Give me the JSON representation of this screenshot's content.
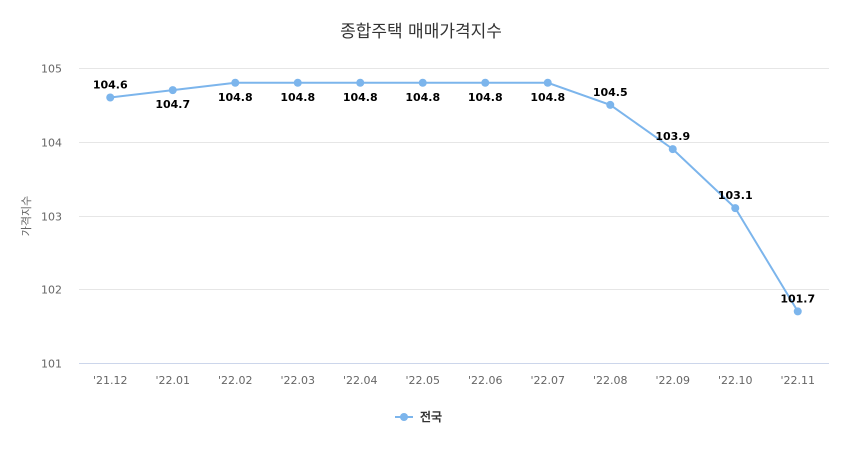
{
  "chart_data": {
    "type": "line",
    "title": "종합주택 매매가격지수",
    "xlabel": "",
    "ylabel": "가격지수",
    "categories": [
      "'21.12",
      "'22.01",
      "'22.02",
      "'22.03",
      "'22.04",
      "'22.05",
      "'22.06",
      "'22.07",
      "'22.08",
      "'22.09",
      "'22.10",
      "'22.11"
    ],
    "series": [
      {
        "name": "전국",
        "color": "#7cb5ec",
        "values": [
          104.6,
          104.7,
          104.8,
          104.8,
          104.8,
          104.8,
          104.8,
          104.8,
          104.5,
          103.9,
          103.1,
          101.7
        ],
        "data_labels": [
          "104.6",
          "104.7",
          "104.8",
          "104.8",
          "104.8",
          "104.8",
          "104.8",
          "104.8",
          "104.5",
          "103.9",
          "103.1",
          "101.7"
        ]
      }
    ],
    "yticks": [
      "101",
      "102",
      "103",
      "104",
      "105"
    ],
    "ylim": [
      101,
      105
    ],
    "grid": true,
    "legend_position": "bottom-center"
  }
}
